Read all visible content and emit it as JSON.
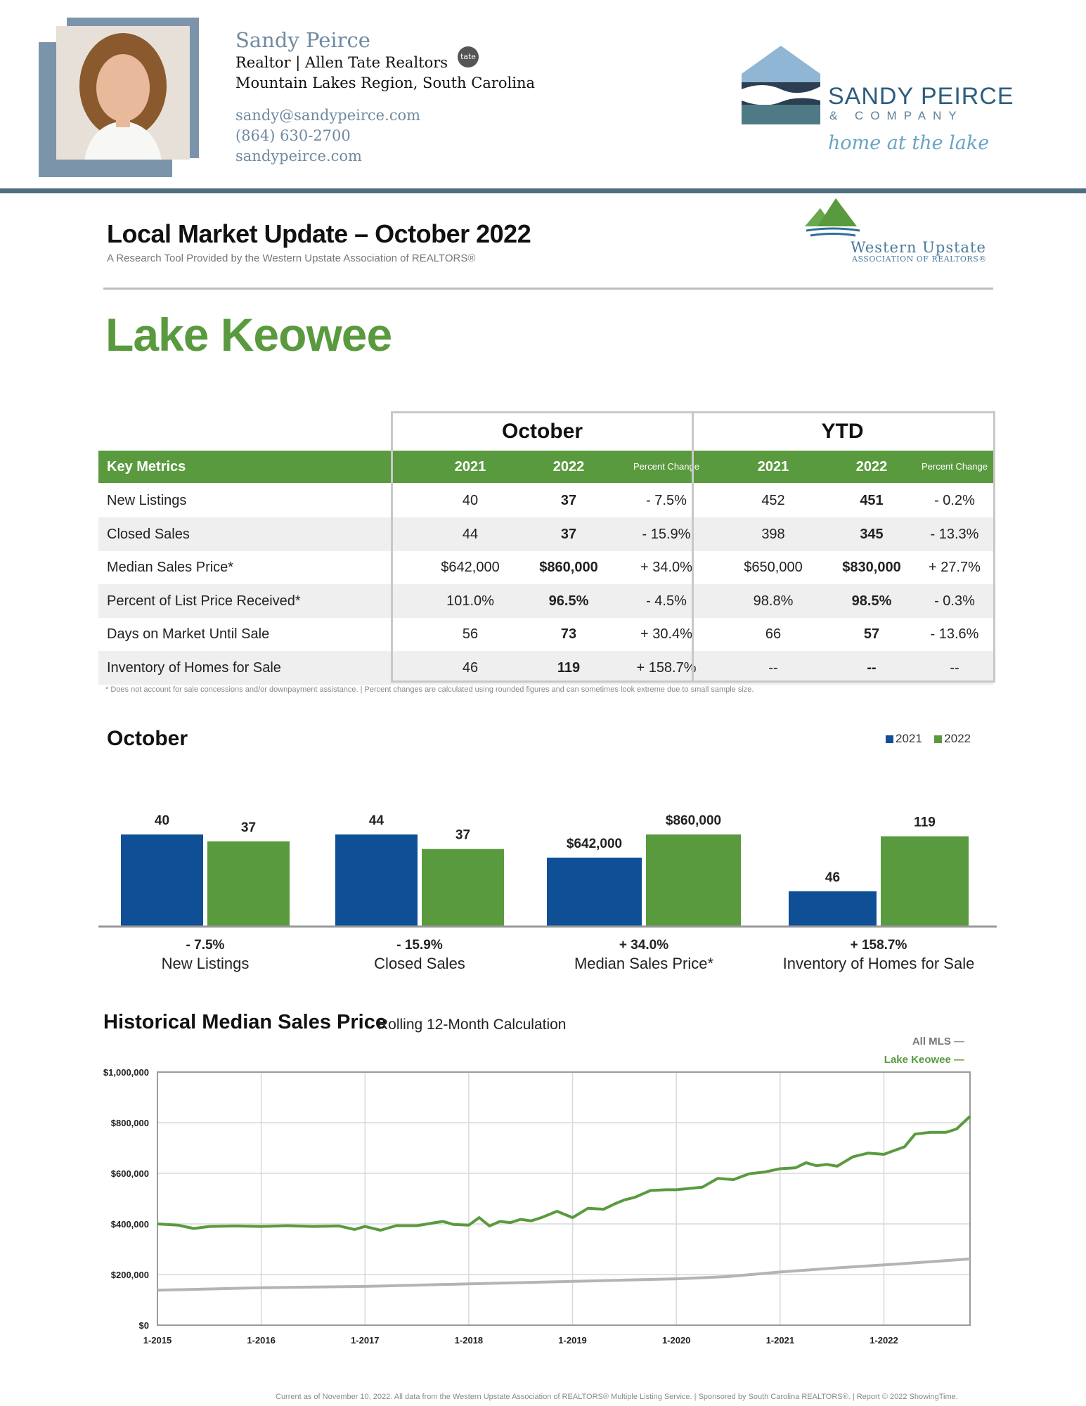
{
  "agent": {
    "name": "Sandy Peirce",
    "title_line": "Realtor  | Allen Tate Realtors",
    "tate_badge": "tate",
    "region": "Mountain Lakes Region, South Carolina",
    "email": "sandy@sandypeirce.com",
    "phone": "(864) 630-2700",
    "website": "sandypeirce.com"
  },
  "brand": {
    "name": "SANDY PEIRCE",
    "sub": "& COMPANY",
    "tagline": "home at the lake"
  },
  "report": {
    "title": "Local Market Update – October 2022",
    "subtitle": "A Research Tool Provided by the Western Upstate Association of REALTORS®",
    "association_line1": "Western Upstate",
    "association_line2": "ASSOCIATION OF REALTORS®",
    "area": "Lake Keowee"
  },
  "table": {
    "group_october": "October",
    "group_ytd": "YTD",
    "header": {
      "metrics": "Key Metrics",
      "y2021": "2021",
      "y2022": "2022",
      "pct": "Percent Change",
      "ytd2021": "2021",
      "ytd2022": "2022",
      "ytdpct": "Percent Change"
    },
    "rows": [
      {
        "label": "New Listings",
        "oct2021": "40",
        "oct2022": "37",
        "octpct": "- 7.5%",
        "ytd2021": "452",
        "ytd2022": "451",
        "ytdpct": "- 0.2%"
      },
      {
        "label": "Closed Sales",
        "oct2021": "44",
        "oct2022": "37",
        "octpct": "- 15.9%",
        "ytd2021": "398",
        "ytd2022": "345",
        "ytdpct": "- 13.3%"
      },
      {
        "label": "Median Sales Price*",
        "oct2021": "$642,000",
        "oct2022": "$860,000",
        "octpct": "+ 34.0%",
        "ytd2021": "$650,000",
        "ytd2022": "$830,000",
        "ytdpct": "+ 27.7%"
      },
      {
        "label": "Percent of List Price Received*",
        "oct2021": "101.0%",
        "oct2022": "96.5%",
        "octpct": "- 4.5%",
        "ytd2021": "98.8%",
        "ytd2022": "98.5%",
        "ytdpct": "- 0.3%"
      },
      {
        "label": "Days on Market Until Sale",
        "oct2021": "56",
        "oct2022": "73",
        "octpct": "+ 30.4%",
        "ytd2021": "66",
        "ytd2022": "57",
        "ytdpct": "- 13.6%"
      },
      {
        "label": "Inventory of Homes for Sale",
        "oct2021": "46",
        "oct2022": "119",
        "octpct": "+ 158.7%",
        "ytd2021": "--",
        "ytd2022": "--",
        "ytdpct": "--"
      }
    ],
    "footnote": "* Does not account for sale concessions and/or downpayment assistance.  |  Percent changes are calculated using rounded figures and can sometimes look extreme due to small sample size."
  },
  "colors": {
    "green": "#5a9a3f",
    "blue": "#0f4f96",
    "gray_line": "#b4b4b4"
  },
  "chart_data": [
    {
      "type": "bar",
      "title": "October",
      "legend_position": "top-right",
      "series_names": [
        "2021",
        "2022"
      ],
      "groups": [
        {
          "category": "New Listings",
          "pct": "- 7.5%",
          "v2021": 40,
          "v2022": 37,
          "label2021": "40",
          "label2022": "37"
        },
        {
          "category": "Closed Sales",
          "pct": "- 15.9%",
          "v2021": 44,
          "v2022": 37,
          "label2021": "44",
          "label2022": "37"
        },
        {
          "category": "Median Sales Price*",
          "pct": "+ 34.0%",
          "v2021": 642000,
          "v2022": 860000,
          "label2021": "$642,000",
          "label2022": "$860,000"
        },
        {
          "category": "Inventory of Homes for Sale",
          "pct": "+ 158.7%",
          "v2021": 46,
          "v2022": 119,
          "label2021": "46",
          "label2022": "119"
        }
      ]
    },
    {
      "type": "line",
      "title": "Historical Median Sales Price",
      "subtitle": "Rolling 12-Month Calculation",
      "legend": [
        "All MLS",
        "Lake Keowee"
      ],
      "legend_position": "top-right",
      "grid": true,
      "ylim": [
        0,
        1000000
      ],
      "y_ticks": [
        0,
        200000,
        400000,
        600000,
        800000,
        1000000
      ],
      "y_tick_labels": [
        "$0",
        "$200,000",
        "$400,000",
        "$600,000",
        "$800,000",
        "$1,000,000"
      ],
      "x_tick_labels": [
        "1-2015",
        "1-2016",
        "1-2017",
        "1-2018",
        "1-2019",
        "1-2020",
        "1-2021",
        "1-2022"
      ],
      "x_range": [
        2015.0,
        2022.83
      ],
      "series": [
        {
          "name": "All MLS",
          "color": "#b4b4b4",
          "x": [
            2015.0,
            2016.0,
            2017.0,
            2018.0,
            2019.0,
            2020.0,
            2020.5,
            2021.0,
            2021.5,
            2022.0,
            2022.5,
            2022.83
          ],
          "y": [
            138000,
            148000,
            153000,
            163000,
            173000,
            183000,
            192000,
            210000,
            225000,
            238000,
            252000,
            262000
          ]
        },
        {
          "name": "Lake Keowee",
          "color": "#5a9a3f",
          "x": [
            2015.0,
            2015.2,
            2015.35,
            2015.5,
            2015.75,
            2016.0,
            2016.25,
            2016.5,
            2016.75,
            2016.9,
            2017.0,
            2017.15,
            2017.3,
            2017.5,
            2017.75,
            2017.85,
            2018.0,
            2018.1,
            2018.2,
            2018.3,
            2018.4,
            2018.5,
            2018.6,
            2018.7,
            2018.85,
            2019.0,
            2019.15,
            2019.3,
            2019.4,
            2019.5,
            2019.6,
            2019.75,
            2019.9,
            2020.0,
            2020.25,
            2020.4,
            2020.55,
            2020.7,
            2020.85,
            2021.0,
            2021.15,
            2021.25,
            2021.35,
            2021.45,
            2021.55,
            2021.7,
            2021.85,
            2022.0,
            2022.2,
            2022.3,
            2022.45,
            2022.6,
            2022.7,
            2022.83
          ],
          "y": [
            400000,
            395000,
            382000,
            390000,
            392000,
            390000,
            393000,
            390000,
            392000,
            378000,
            390000,
            375000,
            393000,
            393000,
            410000,
            398000,
            395000,
            425000,
            392000,
            410000,
            405000,
            418000,
            412000,
            425000,
            450000,
            425000,
            462000,
            458000,
            478000,
            495000,
            505000,
            532000,
            535000,
            535000,
            545000,
            580000,
            575000,
            598000,
            605000,
            618000,
            622000,
            642000,
            630000,
            635000,
            628000,
            665000,
            680000,
            675000,
            705000,
            755000,
            762000,
            762000,
            775000,
            825000
          ]
        }
      ]
    }
  ],
  "footer": "Current as of November 10, 2022. All data from the Western Upstate Association of REALTORS® Multiple Listing Service.  |  Sponsored by South Carolina REALTORS®.  |  Report © 2022 ShowingTime."
}
